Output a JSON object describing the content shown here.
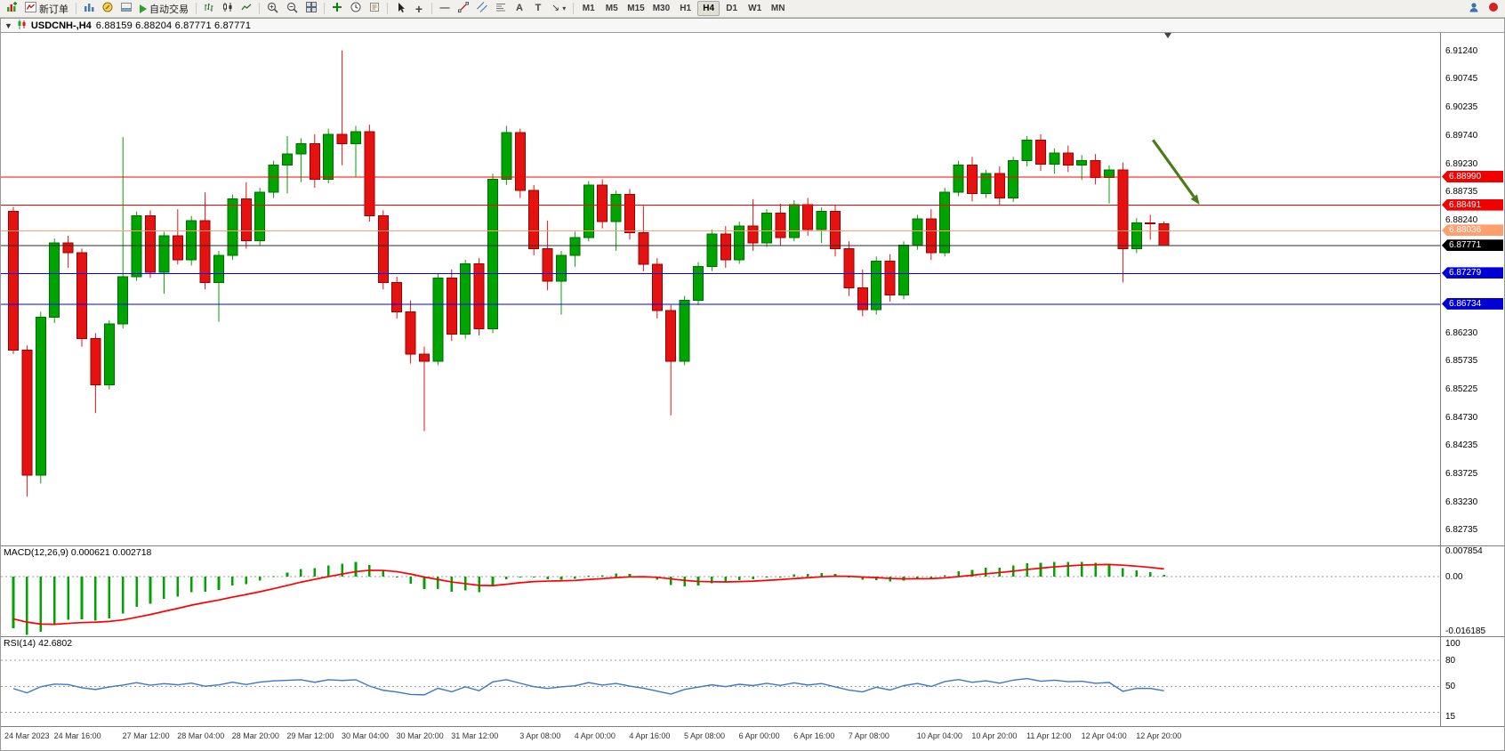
{
  "toolbar": {
    "new_order": "新订单",
    "autotrade": "自动交易",
    "timeframes": [
      "M1",
      "M5",
      "M15",
      "M30",
      "H1",
      "H4",
      "D1",
      "W1",
      "MN"
    ],
    "active_timeframe": "H4"
  },
  "title": {
    "symbol": "USDCNH-,H4",
    "ohlc": "6.88159 6.88204 6.87771 6.87771"
  },
  "colors": {
    "bull": "#00a400",
    "bull_border": "#006d00",
    "bear": "#e51212",
    "bear_border": "#9b0000",
    "macd_hist": "#00a400",
    "macd_signal": "#ff0000",
    "rsi_line": "#3a77c9",
    "level_red": "#ff0000",
    "level_orange": "#ff9e6e",
    "level_blue": "#0000ff",
    "level_black": "#2b2b2b",
    "arrow": "#4b7b17",
    "dashed": "#9a9a9a"
  },
  "price_axis_ticks": [
    "6.91240",
    "6.90745",
    "6.90235",
    "6.89740",
    "6.89230",
    "6.88735",
    "6.88240",
    "6.86230",
    "6.85735",
    "6.85225",
    "6.84730",
    "6.84235",
    "6.83725",
    "6.83230",
    "6.82735"
  ],
  "levels": [
    {
      "price": 6.8899,
      "label": "6.88990",
      "line": "#ff0000",
      "tag": "#f20000"
    },
    {
      "price": 6.88491,
      "label": "6.88491",
      "line": "#ff0000",
      "tag": "#f20000"
    },
    {
      "price": 6.88036,
      "label": "6.88036",
      "line": "#ff9e6e",
      "tag": "#ff9e6e"
    },
    {
      "price": 6.87771,
      "label": "6.87771",
      "line": "#2b2b2b",
      "tag": "#000000"
    },
    {
      "price": 6.87279,
      "label": "6.87279",
      "line": "#0000ff",
      "tag": "#0000d6"
    },
    {
      "price": 6.86734,
      "label": "6.86734",
      "line": "#0000ff",
      "tag": "#0000d6"
    }
  ],
  "macd_panel": {
    "title": "MACD(12,26,9)",
    "value_main": "0.000621",
    "value_signal": "0.002718",
    "axis": [
      "0.007854",
      "0.00",
      "-0.016185"
    ],
    "range": [
      -0.0172,
      0.0088
    ]
  },
  "rsi_panel": {
    "title": "RSI(14)",
    "value": "42.6802",
    "axis": [
      "100",
      "80",
      "50",
      "15"
    ],
    "levels": [
      80,
      50,
      20
    ],
    "range": [
      4,
      107
    ]
  },
  "chart_data": {
    "type": "candlestick",
    "title": "USDCNH- H4",
    "y_range": [
      6.8245,
      6.9155
    ],
    "x_labels": [
      {
        "i": 0,
        "t": "24 Mar 2023"
      },
      {
        "i": 4,
        "t": "24 Mar 16:00"
      },
      {
        "i": 9,
        "t": "27 Mar 12:00"
      },
      {
        "i": 13,
        "t": "28 Mar 04:00"
      },
      {
        "i": 17,
        "t": "28 Mar 20:00"
      },
      {
        "i": 21,
        "t": "29 Mar 12:00"
      },
      {
        "i": 25,
        "t": "30 Mar 04:00"
      },
      {
        "i": 29,
        "t": "30 Mar 20:00"
      },
      {
        "i": 33,
        "t": "31 Mar 12:00"
      },
      {
        "i": 38,
        "t": "3 Apr 08:00"
      },
      {
        "i": 42,
        "t": "4 Apr 00:00"
      },
      {
        "i": 46,
        "t": "4 Apr 16:00"
      },
      {
        "i": 50,
        "t": "5 Apr 08:00"
      },
      {
        "i": 54,
        "t": "6 Apr 00:00"
      },
      {
        "i": 58,
        "t": "6 Apr 16:00"
      },
      {
        "i": 62,
        "t": "7 Apr 08:00"
      },
      {
        "i": 67,
        "t": "10 Apr 04:00"
      },
      {
        "i": 71,
        "t": "10 Apr 20:00"
      },
      {
        "i": 75,
        "t": "11 Apr 12:00"
      },
      {
        "i": 79,
        "t": "12 Apr 04:00"
      },
      {
        "i": 83,
        "t": "12 Apr 20:00"
      }
    ],
    "candles": [
      [
        6.8838,
        6.8846,
        6.8585,
        6.8592
      ],
      [
        6.8592,
        6.86,
        6.8332,
        6.837
      ],
      [
        6.837,
        6.866,
        6.8355,
        6.865
      ],
      [
        6.865,
        6.879,
        6.864,
        6.8782
      ],
      [
        6.8782,
        6.8795,
        6.8738,
        6.8765
      ],
      [
        6.8765,
        6.8772,
        6.8598,
        6.8612
      ],
      [
        6.8612,
        6.8622,
        6.848,
        6.853
      ],
      [
        6.853,
        6.8645,
        6.8522,
        6.8638
      ],
      [
        6.8638,
        6.897,
        6.863,
        6.8722
      ],
      [
        6.8722,
        6.8838,
        6.8715,
        6.883
      ],
      [
        6.883,
        6.884,
        6.872,
        6.873
      ],
      [
        6.873,
        6.8802,
        6.8692,
        6.8795
      ],
      [
        6.8795,
        6.8842,
        6.8744,
        6.8752
      ],
      [
        6.8752,
        6.883,
        6.8742,
        6.8822
      ],
      [
        6.8822,
        6.8872,
        6.87,
        6.8712
      ],
      [
        6.8712,
        6.8768,
        6.8642,
        6.876
      ],
      [
        6.876,
        6.8868,
        6.8752,
        6.886
      ],
      [
        6.886,
        6.889,
        6.8772,
        6.8786
      ],
      [
        6.8786,
        6.888,
        6.8778,
        6.8872
      ],
      [
        6.8872,
        6.8928,
        6.8862,
        6.892
      ],
      [
        6.892,
        6.8972,
        6.887,
        6.894
      ],
      [
        6.894,
        6.8968,
        6.889,
        6.8958
      ],
      [
        6.8958,
        6.8975,
        6.888,
        6.8895
      ],
      [
        6.8895,
        6.8985,
        6.8888,
        6.8975
      ],
      [
        6.8975,
        6.9124,
        6.892,
        6.8958
      ],
      [
        6.8958,
        6.899,
        6.89,
        6.898
      ],
      [
        6.898,
        6.8992,
        6.882,
        6.883
      ],
      [
        6.883,
        6.884,
        6.87,
        6.8712
      ],
      [
        6.8712,
        6.8722,
        6.8648,
        6.866
      ],
      [
        6.866,
        6.868,
        6.8568,
        6.8585
      ],
      [
        6.8585,
        6.8598,
        6.8448,
        6.8572
      ],
      [
        6.8572,
        6.8728,
        6.8565,
        6.872
      ],
      [
        6.872,
        6.8735,
        6.8608,
        6.862
      ],
      [
        6.862,
        6.8752,
        6.8612,
        6.8745
      ],
      [
        6.8745,
        6.8755,
        6.8618,
        6.863
      ],
      [
        6.863,
        6.8905,
        6.8622,
        6.8895
      ],
      [
        6.8895,
        6.899,
        6.8885,
        6.8978
      ],
      [
        6.8978,
        6.8985,
        6.8862,
        6.8875
      ],
      [
        6.8875,
        6.8885,
        6.876,
        6.8772
      ],
      [
        6.8772,
        6.8822,
        6.8698,
        6.8714
      ],
      [
        6.8714,
        6.8768,
        6.8655,
        6.876
      ],
      [
        6.876,
        6.8802,
        6.874,
        6.8792
      ],
      [
        6.8792,
        6.8892,
        6.8785,
        6.8885
      ],
      [
        6.8885,
        6.8895,
        6.8808,
        6.882
      ],
      [
        6.882,
        6.8875,
        6.8768,
        6.8868
      ],
      [
        6.8868,
        6.8878,
        6.8788,
        6.88
      ],
      [
        6.88,
        6.8848,
        6.8732,
        6.8744
      ],
      [
        6.8744,
        6.8755,
        6.8648,
        6.8662
      ],
      [
        6.8662,
        6.8672,
        6.8476,
        6.8572
      ],
      [
        6.8572,
        6.8688,
        6.8565,
        6.868
      ],
      [
        6.868,
        6.8748,
        6.8672,
        6.874
      ],
      [
        6.874,
        6.8806,
        6.8732,
        6.8798
      ],
      [
        6.8798,
        6.8812,
        6.8738,
        6.8752
      ],
      [
        6.8752,
        6.882,
        6.8745,
        6.8812
      ],
      [
        6.8812,
        6.886,
        6.8768,
        6.8782
      ],
      [
        6.8782,
        6.8842,
        6.8775,
        6.8835
      ],
      [
        6.8835,
        6.8852,
        6.8778,
        6.8792
      ],
      [
        6.8792,
        6.8858,
        6.8785,
        6.885
      ],
      [
        6.885,
        6.8862,
        6.8795,
        6.8806
      ],
      [
        6.8806,
        6.8845,
        6.8782,
        6.8838
      ],
      [
        6.8838,
        6.885,
        6.8758,
        6.8772
      ],
      [
        6.8772,
        6.8785,
        6.8688,
        6.8702
      ],
      [
        6.8702,
        6.8735,
        6.8652,
        6.8664
      ],
      [
        6.8664,
        6.8758,
        6.8655,
        6.875
      ],
      [
        6.875,
        6.8762,
        6.8678,
        6.869
      ],
      [
        6.869,
        6.8785,
        6.8682,
        6.8778
      ],
      [
        6.8778,
        6.8832,
        6.877,
        6.8825
      ],
      [
        6.8825,
        6.8842,
        6.8752,
        6.8765
      ],
      [
        6.8765,
        6.888,
        6.8758,
        6.8872
      ],
      [
        6.8872,
        6.8928,
        6.8865,
        6.892
      ],
      [
        6.892,
        6.8935,
        6.8856,
        6.887
      ],
      [
        6.887,
        6.8912,
        6.8862,
        6.8905
      ],
      [
        6.8905,
        6.8918,
        6.885,
        6.8862
      ],
      [
        6.8862,
        6.8935,
        6.8855,
        6.8928
      ],
      [
        6.8928,
        6.8972,
        6.8918,
        6.8965
      ],
      [
        6.8965,
        6.8975,
        6.891,
        6.8922
      ],
      [
        6.8922,
        6.895,
        6.8905,
        6.8942
      ],
      [
        6.8942,
        6.8955,
        6.8908,
        6.892
      ],
      [
        6.892,
        6.8938,
        6.8894,
        6.8928
      ],
      [
        6.8928,
        6.894,
        6.8886,
        6.8898
      ],
      [
        6.8898,
        6.892,
        6.8852,
        6.8912
      ],
      [
        6.8912,
        6.8925,
        6.8712,
        6.8772
      ],
      [
        6.8772,
        6.8826,
        6.8764,
        6.8818
      ],
      [
        6.8818,
        6.8832,
        6.8788,
        6.8816
      ],
      [
        6.88159,
        6.88204,
        6.87771,
        6.87771
      ]
    ],
    "h_lines": [
      6.8899,
      6.88491,
      6.88036,
      6.87771,
      6.87279,
      6.86734
    ],
    "annotations": [
      {
        "type": "arrow",
        "from": {
          "bar": 83.2,
          "price": 6.8965
        },
        "to": {
          "bar": 86.6,
          "price": 6.885
        },
        "color": "#4b7b17"
      },
      {
        "type": "plus-marker",
        "bar": 63,
        "price": 6.8718,
        "color": "#00a400"
      }
    ]
  }
}
